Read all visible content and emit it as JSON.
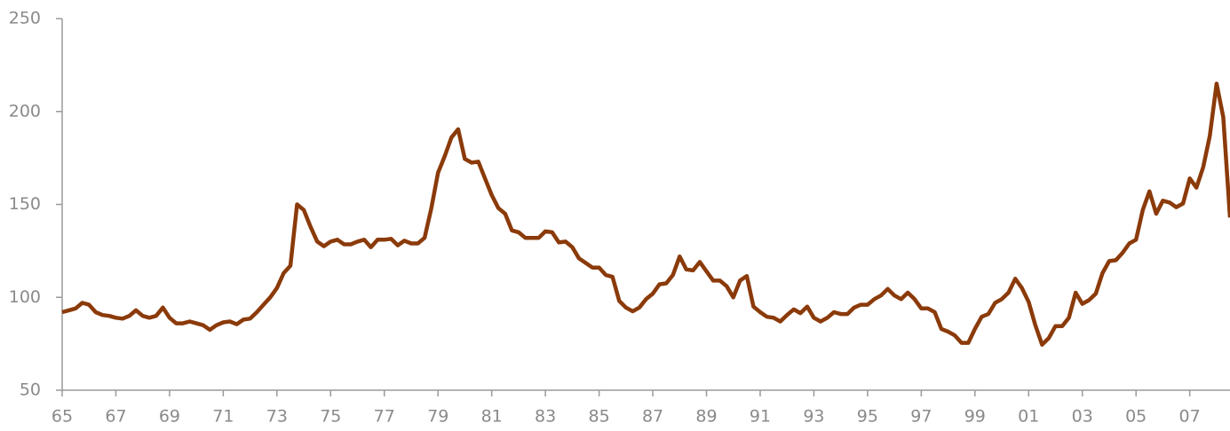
{
  "chart_data": {
    "type": "line",
    "x": [
      1965,
      1965.25,
      1965.5,
      1965.75,
      1966,
      1966.25,
      1966.5,
      1966.75,
      1967,
      1967.25,
      1967.5,
      1967.75,
      1968,
      1968.25,
      1968.5,
      1968.75,
      1969,
      1969.25,
      1969.5,
      1969.75,
      1970,
      1970.25,
      1970.5,
      1970.75,
      1971,
      1971.25,
      1971.5,
      1971.75,
      1972,
      1972.25,
      1972.5,
      1972.75,
      1973,
      1973.25,
      1973.5,
      1973.75,
      1974,
      1974.25,
      1974.5,
      1974.75,
      1975,
      1975.25,
      1975.5,
      1975.75,
      1976,
      1976.25,
      1976.5,
      1976.75,
      1977,
      1977.25,
      1977.5,
      1977.75,
      1978,
      1978.25,
      1978.5,
      1978.75,
      1979,
      1979.25,
      1979.5,
      1979.75,
      1980,
      1980.25,
      1980.5,
      1980.75,
      1981,
      1981.25,
      1981.5,
      1981.75,
      1982,
      1982.25,
      1982.5,
      1982.75,
      1983,
      1983.25,
      1983.5,
      1983.75,
      1984,
      1984.25,
      1984.5,
      1984.75,
      1985,
      1985.25,
      1985.5,
      1985.75,
      1986,
      1986.25,
      1986.5,
      1986.75,
      1987,
      1987.25,
      1987.5,
      1987.75,
      1988,
      1988.25,
      1988.5,
      1988.75,
      1989,
      1989.25,
      1989.5,
      1989.75,
      1990,
      1990.25,
      1990.5,
      1990.75,
      1991,
      1991.25,
      1991.5,
      1991.75,
      1992,
      1992.25,
      1992.5,
      1992.75,
      1993,
      1993.25,
      1993.5,
      1993.75,
      1994,
      1994.25,
      1994.5,
      1994.75,
      1995,
      1995.25,
      1995.5,
      1995.75,
      1996,
      1996.25,
      1996.5,
      1996.75,
      1997,
      1997.25,
      1997.5,
      1997.75,
      1998,
      1998.25,
      1998.5,
      1998.75,
      1999,
      1999.25,
      1999.5,
      1999.75,
      2000,
      2000.25,
      2000.5,
      2000.75,
      2001,
      2001.25,
      2001.5,
      2001.75,
      2002,
      2002.25,
      2002.5,
      2002.75,
      2003,
      2003.25,
      2003.5,
      2003.75,
      2004,
      2004.25,
      2004.5,
      2004.75,
      2005,
      2005.25,
      2005.5,
      2005.75,
      2006,
      2006.25,
      2006.5,
      2006.75,
      2007,
      2007.25,
      2007.5,
      2007.75,
      2008,
      2008.25,
      2008.5
    ],
    "series": [
      {
        "color": "#8b3a0a",
        "values": [
          92,
          93,
          94,
          97,
          96,
          92,
          90.5,
          90,
          89,
          88.5,
          90,
          93,
          90,
          89,
          90,
          94.5,
          89,
          86,
          86,
          87,
          86,
          85,
          82.5,
          85,
          86.5,
          87,
          85.5,
          88,
          88.5,
          92,
          96,
          100,
          105,
          113,
          117,
          150,
          147,
          138,
          130,
          127.5,
          130,
          131,
          128.5,
          128.5,
          130,
          131,
          127,
          131,
          131,
          131.5,
          128,
          130.5,
          129,
          129,
          132,
          148,
          167,
          176,
          186,
          190.5,
          174.5,
          172.5,
          173,
          164,
          155,
          148,
          145,
          136,
          135,
          132,
          132,
          132,
          135.5,
          135,
          129.5,
          130,
          127,
          121,
          118.5,
          116,
          116,
          112,
          111,
          98,
          94.5,
          92.5,
          94.5,
          99,
          102,
          107,
          107.5,
          112,
          122,
          115,
          114.5,
          119,
          114,
          109,
          109,
          106,
          100,
          109,
          111.5,
          95,
          92,
          89.5,
          89,
          87,
          90.5,
          93.5,
          91.5,
          95,
          89,
          87,
          89,
          92,
          91,
          91,
          94.5,
          96,
          96,
          99,
          101,
          104.5,
          101,
          99,
          102.5,
          99,
          94,
          94,
          92,
          83,
          81.5,
          79.5,
          75.5,
          75.5,
          83,
          89.5,
          91,
          97,
          99,
          102.5,
          110,
          105,
          97.5,
          85,
          74.5,
          78,
          84.5,
          84.5,
          89,
          102.5,
          96.5,
          98.5,
          102,
          113,
          119.5,
          120,
          124,
          129,
          131,
          147,
          157,
          145,
          152,
          151,
          148.5,
          150.5,
          164,
          159,
          170,
          187,
          215,
          197,
          143
        ]
      }
    ],
    "xlim": [
      1965,
      2008.5
    ],
    "xticks": [
      {
        "value": 1965,
        "label": "65"
      },
      {
        "value": 1967,
        "label": "67"
      },
      {
        "value": 1969,
        "label": "69"
      },
      {
        "value": 1971,
        "label": "71"
      },
      {
        "value": 1973,
        "label": "73"
      },
      {
        "value": 1975,
        "label": "75"
      },
      {
        "value": 1977,
        "label": "77"
      },
      {
        "value": 1979,
        "label": "79"
      },
      {
        "value": 1981,
        "label": "81"
      },
      {
        "value": 1983,
        "label": "83"
      },
      {
        "value": 1985,
        "label": "85"
      },
      {
        "value": 1987,
        "label": "87"
      },
      {
        "value": 1989,
        "label": "89"
      },
      {
        "value": 1991,
        "label": "91"
      },
      {
        "value": 1993,
        "label": "93"
      },
      {
        "value": 1995,
        "label": "95"
      },
      {
        "value": 1997,
        "label": "97"
      },
      {
        "value": 1999,
        "label": "99"
      },
      {
        "value": 2001,
        "label": "01"
      },
      {
        "value": 2003,
        "label": "03"
      },
      {
        "value": 2005,
        "label": "05"
      },
      {
        "value": 2007,
        "label": "07"
      }
    ],
    "ylim": [
      50,
      250
    ],
    "yticks": [
      50,
      100,
      150,
      200,
      250
    ]
  }
}
